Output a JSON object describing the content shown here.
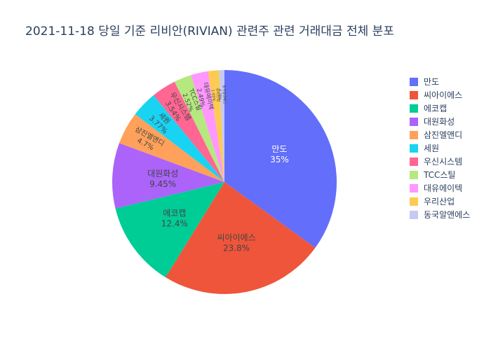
{
  "chart_data": {
    "type": "pie",
    "title": "2021-11-18 당일 기준 리비안(RIVIAN) 관련주 관련 거래대금 전체 분포",
    "legend_position": "right",
    "labels": [
      "만도",
      "씨아이에스",
      "에코캡",
      "대원화성",
      "삼진엘앤디",
      "세원",
      "우신시스템",
      "TCC스틸",
      "대유에이텍",
      "우리산업",
      "동국알앤에스"
    ],
    "values": [
      35,
      23.8,
      12.4,
      9.45,
      4.7,
      3.77,
      3.54,
      2.52,
      2.49,
      1.55,
      0.78
    ],
    "percent_labels": [
      "35%",
      "23.8%",
      "12.4%",
      "9.45%",
      "4.7%",
      "3.77%",
      "3.54%",
      "2.52%",
      "2.49%",
      "1.55%",
      "0.78%"
    ],
    "colors": [
      "#636efa",
      "#EF553B",
      "#00cc96",
      "#ab63fa",
      "#FFA15A",
      "#19d3f3",
      "#FF6692",
      "#B6E880",
      "#FF97FF",
      "#FECB52",
      "#c6caf3"
    ]
  }
}
